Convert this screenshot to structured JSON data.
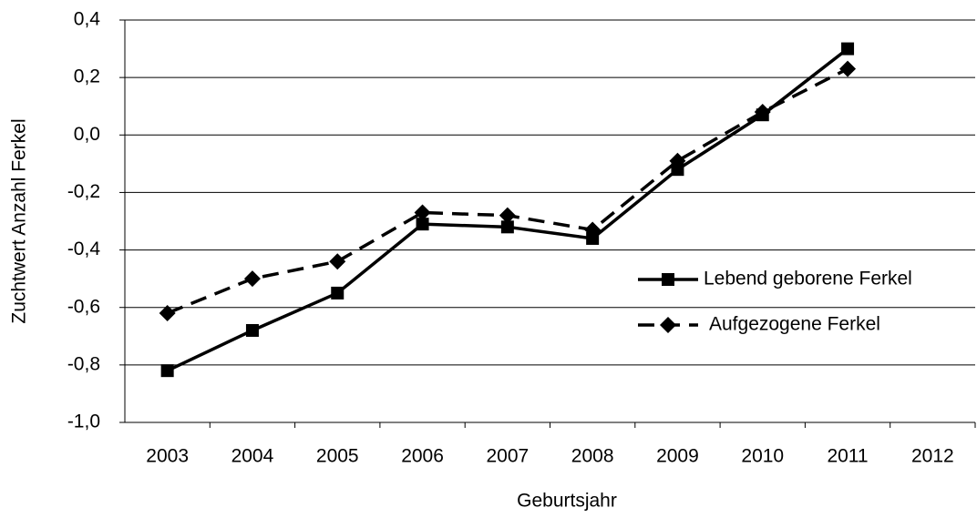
{
  "chart_data": {
    "type": "line",
    "x_label": "Geburtsjahr",
    "y_label": "Zuchtwert Anzahl Ferkel",
    "categories": [
      "2003",
      "2004",
      "2005",
      "2006",
      "2007",
      "2008",
      "2009",
      "2010",
      "2011",
      "2012"
    ],
    "series": [
      {
        "name": "Lebend geborene Ferkel",
        "color": "#000000",
        "dash": false,
        "marker": "square",
        "values": [
          -0.82,
          -0.68,
          -0.55,
          -0.31,
          -0.32,
          -0.36,
          -0.12,
          0.07,
          0.3,
          null
        ]
      },
      {
        "name": "Aufgezogene Ferkel",
        "color": "#000000",
        "dash": true,
        "marker": "diamond",
        "values": [
          -0.62,
          -0.5,
          -0.44,
          -0.27,
          -0.28,
          -0.33,
          -0.09,
          0.08,
          0.23,
          null
        ]
      }
    ],
    "ylim": [
      -1.0,
      0.4
    ],
    "yticks": [
      {
        "value": -1.0,
        "label": "-1,0"
      },
      {
        "value": -0.8,
        "label": "-0,8"
      },
      {
        "value": -0.6,
        "label": "-0,6"
      },
      {
        "value": -0.4,
        "label": "-0,4"
      },
      {
        "value": -0.2,
        "label": "-0,2"
      },
      {
        "value": 0.0,
        "label": "0,0"
      },
      {
        "value": 0.2,
        "label": "0,2"
      },
      {
        "value": 0.4,
        "label": "0,4"
      }
    ],
    "grid": true,
    "legend": "right"
  }
}
